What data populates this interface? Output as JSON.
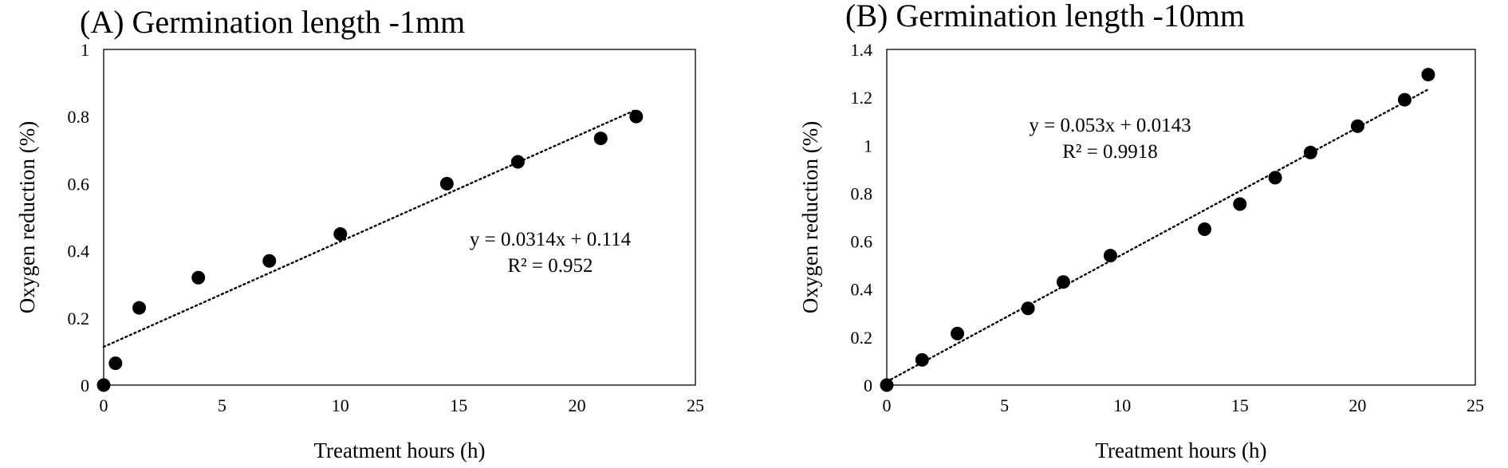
{
  "chart_data": [
    {
      "type": "scatter",
      "title": "(A) Germination length -1mm",
      "xlabel": "Treatment hours (h)",
      "ylabel": "Oxygen reduction (%)",
      "xlim": [
        0,
        25
      ],
      "ylim": [
        0,
        1
      ],
      "x_ticks": [
        0,
        5,
        10,
        15,
        20,
        25
      ],
      "y_ticks": [
        0,
        0.2,
        0.4,
        0.6,
        0.8,
        1
      ],
      "x_tick_labels": [
        "0",
        "5",
        "10",
        "15",
        "20",
        "25"
      ],
      "y_tick_labels": [
        "0",
        "0.2",
        "0.4",
        "0.6",
        "0.8",
        "1"
      ],
      "grid": false,
      "legend": "none",
      "points": [
        {
          "x": 0,
          "y": 0
        },
        {
          "x": 0.5,
          "y": 0.065
        },
        {
          "x": 1.5,
          "y": 0.23
        },
        {
          "x": 4,
          "y": 0.32
        },
        {
          "x": 7,
          "y": 0.37
        },
        {
          "x": 10,
          "y": 0.45
        },
        {
          "x": 14.5,
          "y": 0.6
        },
        {
          "x": 17.5,
          "y": 0.665
        },
        {
          "x": 21,
          "y": 0.735
        },
        {
          "x": 22.5,
          "y": 0.8
        }
      ],
      "trendline": {
        "style": "dotted",
        "slope": 0.0314,
        "intercept": 0.114,
        "x_range": [
          0,
          22.5
        ],
        "equation": "y = 0.0314x + 0.114",
        "r2": "R² = 0.952"
      },
      "marker_color": "#000000"
    },
    {
      "type": "scatter",
      "title": "(B) Germination length -10mm",
      "xlabel": "Treatment hours (h)",
      "ylabel": "Oxygen reduction (%)",
      "xlim": [
        0,
        25
      ],
      "ylim": [
        0,
        1.4
      ],
      "x_ticks": [
        0,
        5,
        10,
        15,
        20,
        25
      ],
      "y_ticks": [
        0,
        0.2,
        0.4,
        0.6,
        0.8,
        1,
        1.2,
        1.4
      ],
      "x_tick_labels": [
        "0",
        "5",
        "10",
        "15",
        "20",
        "25"
      ],
      "y_tick_labels": [
        "0",
        "0.2",
        "0.4",
        "0.6",
        "0.8",
        "1",
        "1.2",
        "1.4"
      ],
      "grid": false,
      "legend": "none",
      "points": [
        {
          "x": 0,
          "y": 0
        },
        {
          "x": 1.5,
          "y": 0.105
        },
        {
          "x": 3,
          "y": 0.215
        },
        {
          "x": 6,
          "y": 0.32
        },
        {
          "x": 7.5,
          "y": 0.43
        },
        {
          "x": 9.5,
          "y": 0.54
        },
        {
          "x": 13.5,
          "y": 0.65
        },
        {
          "x": 15,
          "y": 0.755
        },
        {
          "x": 16.5,
          "y": 0.865
        },
        {
          "x": 18,
          "y": 0.97
        },
        {
          "x": 20,
          "y": 1.08
        },
        {
          "x": 22,
          "y": 1.19
        },
        {
          "x": 23,
          "y": 1.295
        }
      ],
      "trendline": {
        "style": "dotted",
        "slope": 0.053,
        "intercept": 0.0143,
        "x_range": [
          0,
          23
        ],
        "equation": "y = 0.053x + 0.0143",
        "r2": "R² = 0.9918"
      },
      "marker_color": "#000000"
    }
  ]
}
